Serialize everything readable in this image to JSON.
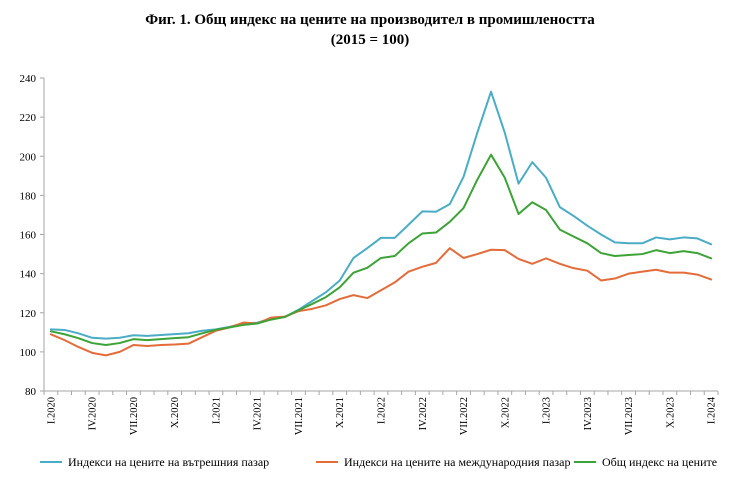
{
  "chart_data": {
    "type": "line",
    "title": "Фиг. 1. Общ индекс на цените на производител в промишлеността",
    "subtitle": "(2015 = 100)",
    "xlabel": "",
    "ylabel": "",
    "ylim": [
      80,
      240
    ],
    "yticks": [
      80,
      100,
      120,
      140,
      160,
      180,
      200,
      220,
      240
    ],
    "grid": false,
    "legend": "bottom",
    "x": [
      "I.2020",
      "II.2020",
      "III.2020",
      "IV.2020",
      "V.2020",
      "VI.2020",
      "VII.2020",
      "VIII.2020",
      "IX.2020",
      "X.2020",
      "XI.2020",
      "XII.2020",
      "I.2021",
      "II.2021",
      "III.2021",
      "IV.2021",
      "V.2021",
      "VI.2021",
      "VII.2021",
      "VIII.2021",
      "IX.2021",
      "X.2021",
      "XI.2021",
      "XII.2021",
      "I.2022",
      "II.2022",
      "III.2022",
      "IV.2022",
      "V.2022",
      "VI.2022",
      "VII.2022",
      "VIII.2022",
      "IX.2022",
      "X.2022",
      "XI.2022",
      "XII.2022",
      "I.2023",
      "II.2023",
      "III.2023",
      "IV.2023",
      "V.2023",
      "VI.2023",
      "VII.2023",
      "VIII.2023",
      "IX.2023",
      "X.2023",
      "XI.2023",
      "XII.2023",
      "I.2024"
    ],
    "xticks": [
      "I.2020",
      "IV.2020",
      "VII.2020",
      "X.2020",
      "I.2021",
      "IV.2021",
      "VII.2021",
      "X.2021",
      "I.2022",
      "IV.2022",
      "VII.2022",
      "X.2022",
      "I.2023",
      "IV.2023",
      "VII.2023",
      "X.2023",
      "I.2024"
    ],
    "series": [
      {
        "name": "Индекси на цените на вътрешния пазар",
        "color": "#4bacc6",
        "values": [
          111.5,
          111.2,
          109.5,
          107.2,
          106.8,
          107.2,
          108.5,
          108.2,
          108.6,
          109.1,
          109.5,
          110.8,
          111.5,
          112.8,
          114.6,
          114.9,
          117.0,
          117.8,
          121.5,
          126.0,
          130.5,
          136.5,
          148.0,
          153.0,
          158.3,
          158.3,
          165.0,
          171.8,
          171.6,
          175.5,
          189.5,
          212.0,
          233.0,
          212.0,
          186.0,
          197.0,
          189.0,
          174.0,
          169.5,
          164.5,
          160.0,
          156.0,
          155.5,
          155.5,
          158.5,
          157.5,
          158.5,
          158.0,
          155.0
        ]
      },
      {
        "name": "Индекси на цените на международния пазар",
        "color": "#e36c3a",
        "values": [
          109.0,
          106.0,
          102.5,
          99.5,
          98.2,
          100.0,
          103.5,
          103.0,
          103.5,
          103.8,
          104.2,
          107.5,
          110.8,
          112.5,
          115.0,
          114.5,
          117.5,
          118.0,
          120.8,
          122.0,
          123.8,
          127.0,
          129.0,
          127.5,
          131.5,
          135.5,
          141.0,
          143.5,
          145.5,
          153.0,
          148.0,
          150.0,
          152.2,
          152.0,
          147.5,
          145.0,
          147.8,
          145.0,
          142.8,
          141.5,
          136.5,
          137.5,
          140.0,
          141.0,
          142.0,
          140.5,
          140.5,
          139.5,
          137.0
        ]
      },
      {
        "name": "Общ индекс на цените",
        "color": "#3da337",
        "values": [
          110.5,
          109.0,
          107.0,
          104.5,
          103.5,
          104.5,
          106.5,
          106.0,
          106.5,
          107.0,
          107.5,
          109.5,
          111.3,
          112.5,
          113.8,
          114.5,
          116.5,
          117.8,
          121.2,
          124.5,
          128.0,
          133.0,
          140.5,
          143.0,
          148.0,
          149.0,
          155.5,
          160.5,
          161.0,
          166.5,
          173.5,
          188.0,
          200.8,
          189.0,
          170.5,
          176.5,
          172.5,
          162.5,
          159.0,
          155.5,
          150.5,
          149.0,
          149.5,
          150.0,
          152.0,
          150.5,
          151.5,
          150.5,
          147.8
        ]
      }
    ]
  }
}
